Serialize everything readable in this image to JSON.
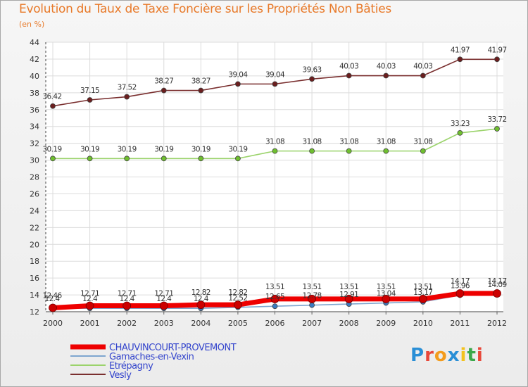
{
  "chart_data": {
    "type": "line",
    "title": "Evolution du Taux de Taxe Foncière sur les Propriétés Non Bâties",
    "ylabel": "(en %)",
    "ylim": [
      12,
      44
    ],
    "yticks": [
      12,
      14,
      16,
      18,
      20,
      22,
      24,
      26,
      28,
      30,
      32,
      34,
      36,
      38,
      40,
      42,
      44
    ],
    "x": [
      "2000",
      "2001",
      "2002",
      "2003",
      "2004",
      "2005",
      "2006",
      "2007",
      "2008",
      "2009",
      "2010",
      "2011",
      "2012"
    ],
    "series": [
      {
        "name": "Vesly",
        "color": "#7a2f2f",
        "marker": "#6b1e1e",
        "values": [
          36.42,
          37.15,
          37.52,
          38.27,
          38.27,
          39.04,
          39.04,
          39.63,
          40.03,
          40.03,
          40.03,
          41.97,
          41.97
        ],
        "labels": [
          "36.42",
          "37.15",
          "37.52",
          "38.27",
          "38.27",
          "39.04",
          "39.04",
          "39.63",
          "40.03",
          "40.03",
          "40.03",
          "41.97",
          "41.97"
        ]
      },
      {
        "name": "Etrépagny",
        "color": "#9bd36b",
        "marker": "#6fbf2f",
        "values": [
          30.19,
          30.19,
          30.19,
          30.19,
          30.19,
          30.19,
          31.08,
          31.08,
          31.08,
          31.08,
          31.08,
          33.23,
          33.72
        ],
        "labels": [
          "30.19",
          "30.19",
          "30.19",
          "30.19",
          "30.19",
          "30.19",
          "31.08",
          "31.08",
          "31.08",
          "31.08",
          "31.08",
          "33.23",
          "33.72"
        ]
      },
      {
        "name": "Gamaches-en-Vexin",
        "color": "#7ea6cf",
        "marker": "#3a7bc0",
        "values": [
          12.4,
          12.4,
          12.4,
          12.4,
          12.4,
          12.52,
          12.65,
          12.78,
          12.91,
          13.04,
          13.17,
          13.96,
          14.09
        ],
        "labels": [
          "12.4",
          "12.4",
          "12.4",
          "12.4",
          "12.4",
          "12.52",
          "12.65",
          "12.78",
          "12.91",
          "13.04",
          "13.17",
          "13.96",
          "14.09"
        ]
      },
      {
        "name": "CHAUVINCOURT-PROVEMONT",
        "color": "#ee0000",
        "marker": "#cc0000",
        "values": [
          12.46,
          12.71,
          12.71,
          12.71,
          12.82,
          12.82,
          13.51,
          13.51,
          13.51,
          13.51,
          13.51,
          14.17,
          14.17
        ],
        "labels": [
          "12.46",
          "12.71",
          "12.71",
          "12.71",
          "12.82",
          "12.82",
          "13.51",
          "13.51",
          "13.51",
          "13.51",
          "13.51",
          "14.17",
          "14.17"
        ]
      }
    ],
    "legend": [
      "CHAUVINCOURT-PROVEMONT",
      "Gamaches-en-Vexin",
      "Etrépagny",
      "Vesly"
    ],
    "legend_position": "bottom-left"
  },
  "brand": {
    "letters": [
      "P",
      "r",
      "o",
      "x",
      "i",
      "t",
      "i"
    ],
    "colors": [
      "#2a8fd6",
      "#e8483a",
      "#f39c1e",
      "#2a8fd6",
      "#f3c21e",
      "#3aa84a",
      "#e8483a"
    ]
  }
}
